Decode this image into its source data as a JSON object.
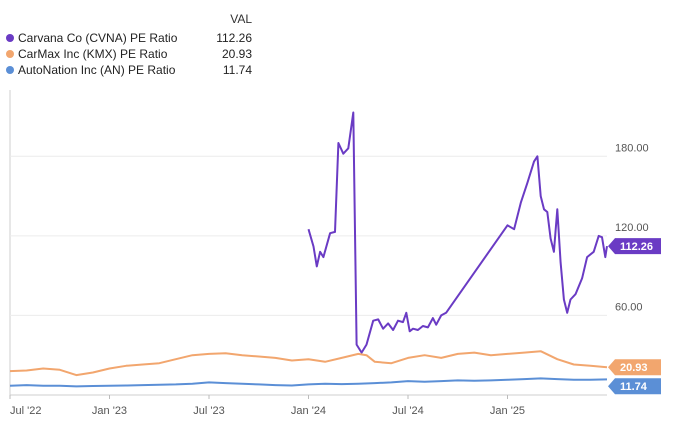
{
  "legend": {
    "val_header": "VAL",
    "entries": [
      {
        "name": "Carvana Co (CVNA) PE Ratio",
        "value": "112.26",
        "color": "#6a3bc4"
      },
      {
        "name": "CarMax Inc (KMX) PE Ratio",
        "value": "20.93",
        "color": "#f2a66e"
      },
      {
        "name": "AutoNation Inc (AN) PE Ratio",
        "value": "11.74",
        "color": "#5b8fd6"
      }
    ]
  },
  "chart_data": {
    "type": "line",
    "title": "",
    "xlabel": "",
    "ylabel": "",
    "ylim": [
      0,
      230
    ],
    "yticks": [
      60,
      120,
      180
    ],
    "ytick_labels": [
      "60.00",
      "120.00",
      "180.00"
    ],
    "x_range": [
      0,
      36
    ],
    "xticks": [
      {
        "label": "Jul '22",
        "x": 0
      },
      {
        "label": "Jan '23",
        "x": 6
      },
      {
        "label": "Jul '23",
        "x": 12
      },
      {
        "label": "Jan '24",
        "x": 18
      },
      {
        "label": "Jul '24",
        "x": 24
      },
      {
        "label": "Jan '25",
        "x": 30
      }
    ],
    "series": [
      {
        "name": "Carvana Co (CVNA) PE Ratio",
        "color": "#6a3bc4",
        "last_label": "112.26",
        "points": [
          [
            18.0,
            125
          ],
          [
            18.3,
            112
          ],
          [
            18.5,
            97
          ],
          [
            18.7,
            108
          ],
          [
            18.9,
            104
          ],
          [
            19.3,
            122
          ],
          [
            19.6,
            123
          ],
          [
            19.8,
            190
          ],
          [
            20.1,
            182
          ],
          [
            20.4,
            186
          ],
          [
            20.7,
            213
          ],
          [
            20.9,
            38
          ],
          [
            21.2,
            32
          ],
          [
            21.5,
            38
          ],
          [
            21.9,
            56
          ],
          [
            22.2,
            57
          ],
          [
            22.5,
            50
          ],
          [
            22.8,
            54
          ],
          [
            23.1,
            49
          ],
          [
            23.4,
            56
          ],
          [
            23.7,
            55
          ],
          [
            23.9,
            62
          ],
          [
            24.1,
            48
          ],
          [
            24.3,
            50
          ],
          [
            24.6,
            49
          ],
          [
            24.9,
            52
          ],
          [
            25.2,
            51
          ],
          [
            25.5,
            58
          ],
          [
            25.7,
            53
          ],
          [
            26.0,
            60
          ],
          [
            26.3,
            62
          ],
          [
            30.0,
            128
          ],
          [
            30.4,
            125
          ],
          [
            30.8,
            145
          ],
          [
            31.2,
            160
          ],
          [
            31.6,
            176
          ],
          [
            31.8,
            180
          ],
          [
            32.0,
            150
          ],
          [
            32.2,
            140
          ],
          [
            32.4,
            138
          ],
          [
            32.6,
            118
          ],
          [
            32.8,
            108
          ],
          [
            33.0,
            140
          ],
          [
            33.2,
            100
          ],
          [
            33.4,
            72
          ],
          [
            33.6,
            62
          ],
          [
            33.8,
            72
          ],
          [
            34.1,
            76
          ],
          [
            34.5,
            88
          ],
          [
            34.8,
            104
          ],
          [
            35.2,
            108
          ],
          [
            35.5,
            120
          ],
          [
            35.7,
            119
          ],
          [
            35.9,
            104
          ],
          [
            36.0,
            112.26
          ]
        ]
      },
      {
        "name": "CarMax Inc (KMX) PE Ratio",
        "color": "#f2a66e",
        "last_label": "20.93",
        "points": [
          [
            0,
            18
          ],
          [
            1,
            18.5
          ],
          [
            2,
            20
          ],
          [
            3,
            19
          ],
          [
            4,
            15
          ],
          [
            5,
            17
          ],
          [
            6,
            20
          ],
          [
            7,
            22
          ],
          [
            8,
            23
          ],
          [
            9,
            24
          ],
          [
            10,
            27
          ],
          [
            11,
            30
          ],
          [
            12,
            31
          ],
          [
            13,
            31.5
          ],
          [
            14,
            30
          ],
          [
            15,
            29
          ],
          [
            16,
            28
          ],
          [
            17,
            26
          ],
          [
            18,
            27
          ],
          [
            19,
            25
          ],
          [
            20,
            28
          ],
          [
            21,
            31
          ],
          [
            21.5,
            30
          ],
          [
            22,
            25
          ],
          [
            23,
            24
          ],
          [
            24,
            28
          ],
          [
            25,
            30
          ],
          [
            26,
            28
          ],
          [
            27,
            31
          ],
          [
            28,
            32
          ],
          [
            29,
            30
          ],
          [
            30,
            31
          ],
          [
            31,
            32
          ],
          [
            32,
            33
          ],
          [
            32.5,
            30
          ],
          [
            33,
            27
          ],
          [
            34,
            23
          ],
          [
            35,
            22
          ],
          [
            36,
            20.93
          ]
        ]
      },
      {
        "name": "AutoNation Inc (AN) PE Ratio",
        "color": "#5b8fd6",
        "last_label": "11.74",
        "points": [
          [
            0,
            7
          ],
          [
            1,
            7.5
          ],
          [
            2,
            7
          ],
          [
            3,
            7
          ],
          [
            4,
            6.5
          ],
          [
            5,
            6.8
          ],
          [
            6,
            7
          ],
          [
            7,
            7.2
          ],
          [
            8,
            7.5
          ],
          [
            9,
            7.8
          ],
          [
            10,
            8
          ],
          [
            11,
            8.5
          ],
          [
            12,
            9.5
          ],
          [
            13,
            9
          ],
          [
            14,
            8.5
          ],
          [
            15,
            8
          ],
          [
            16,
            7.5
          ],
          [
            17,
            7.2
          ],
          [
            18,
            8
          ],
          [
            19,
            8.5
          ],
          [
            20,
            8.2
          ],
          [
            21,
            8.5
          ],
          [
            22,
            9
          ],
          [
            23,
            9.5
          ],
          [
            24,
            10.5
          ],
          [
            25,
            10
          ],
          [
            26,
            10.5
          ],
          [
            27,
            11
          ],
          [
            28,
            10.8
          ],
          [
            29,
            11
          ],
          [
            30,
            11.5
          ],
          [
            31,
            12
          ],
          [
            32,
            12.5
          ],
          [
            33,
            12
          ],
          [
            34,
            11.5
          ],
          [
            35,
            11.5
          ],
          [
            36,
            11.74
          ]
        ]
      }
    ]
  }
}
